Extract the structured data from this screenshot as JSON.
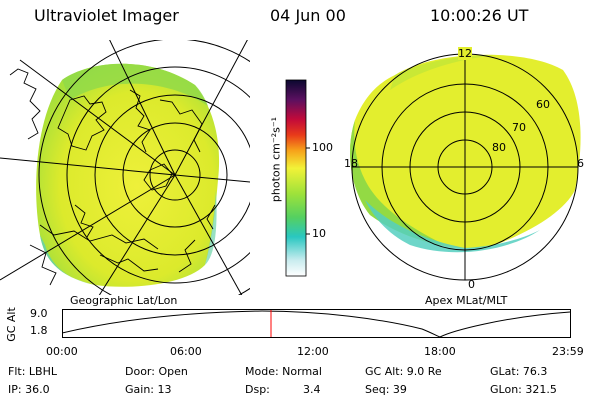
{
  "header": {
    "title": "Ultraviolet Imager",
    "date": "04 Jun 00",
    "time": "10:00:26 UT"
  },
  "colorbar": {
    "unit_label": "photon cm⁻²s⁻¹",
    "ticks": [
      "100",
      "10"
    ]
  },
  "left_panel": {
    "caption": "Geographic Lat/Lon"
  },
  "right_panel": {
    "caption": "Apex MLat/MLT",
    "mlt_labels": {
      "top": "12",
      "left": "18",
      "right": "6",
      "bottom": "0"
    },
    "lat_labels": [
      "60",
      "70",
      "80"
    ]
  },
  "timeline": {
    "ylabel": "GC Alt",
    "y_ticks": [
      "9.0",
      "1.8"
    ],
    "x_ticks": [
      "00:00",
      "06:00",
      "12:00",
      "18:00",
      "23:59"
    ],
    "marker_color": "#ff0000"
  },
  "info": {
    "filter": "Flt: LBHL",
    "door": "Door: Open",
    "mode": "Mode: Normal",
    "gc_alt": "GC Alt: 9.0 Re",
    "glat": "GLat: 76.3",
    "ip": "IP: 36.0",
    "gain": "Gain: 13",
    "dsp_label": "Dsp:",
    "dsp_value": "3.4",
    "seq": "Seq: 39",
    "glon": "GLon: 321.5"
  },
  "colors": {
    "aurora_main": "#e6ef2e",
    "aurora_green": "#8fdc3c",
    "aurora_cyan": "#52d2c8"
  }
}
